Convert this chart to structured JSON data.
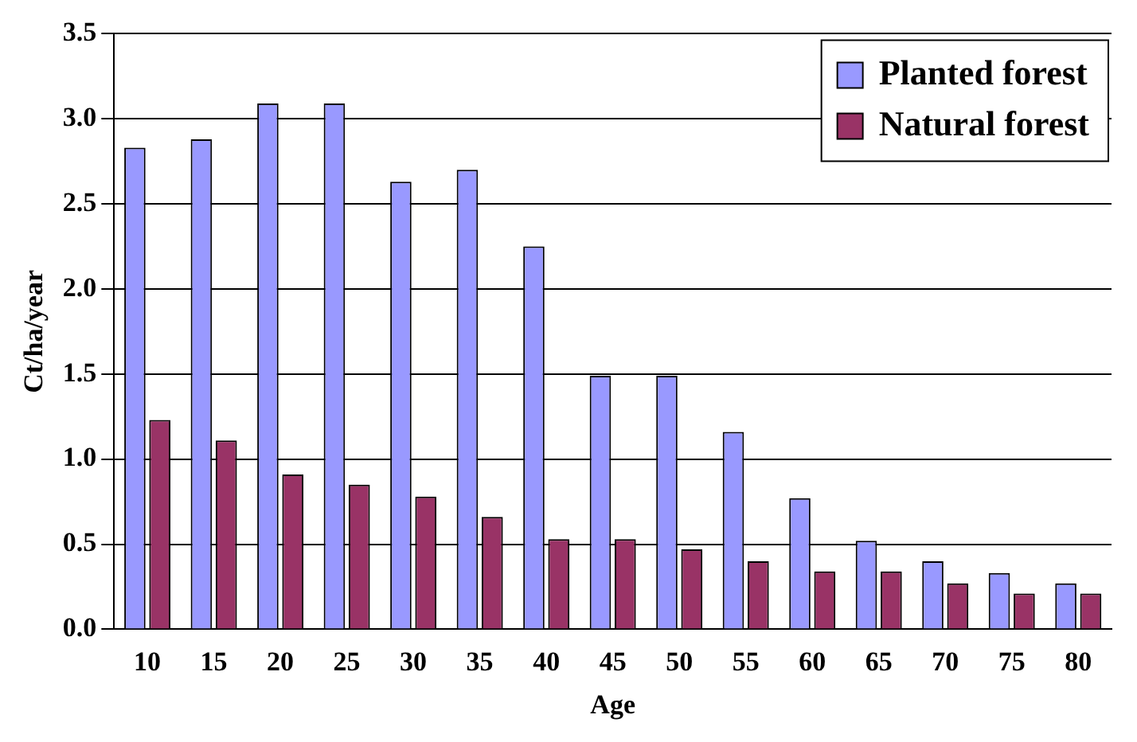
{
  "chart_data": {
    "type": "bar",
    "xlabel": "Age",
    "ylabel": "Ct/ha/year",
    "categories": [
      "10",
      "15",
      "20",
      "25",
      "30",
      "35",
      "40",
      "45",
      "50",
      "55",
      "60",
      "65",
      "70",
      "75",
      "80"
    ],
    "series": [
      {
        "name": "Planted forest",
        "color": "#9999ff",
        "values": [
          2.83,
          2.88,
          3.09,
          3.09,
          2.63,
          2.7,
          2.25,
          1.49,
          1.49,
          1.16,
          0.77,
          0.52,
          0.4,
          0.33,
          0.27
        ]
      },
      {
        "name": "Natural forest",
        "color": "#993366",
        "values": [
          1.23,
          1.11,
          0.91,
          0.85,
          0.78,
          0.66,
          0.53,
          0.53,
          0.47,
          0.4,
          0.34,
          0.34,
          0.27,
          0.21,
          0.21
        ]
      }
    ],
    "ylim": [
      0,
      3.5
    ],
    "yticks": [
      {
        "value": 0,
        "label": "0.0"
      },
      {
        "value": 0.5,
        "label": "0.5"
      },
      {
        "value": 1,
        "label": "1.0"
      },
      {
        "value": 1.5,
        "label": "1.5"
      },
      {
        "value": 2,
        "label": "2.0"
      },
      {
        "value": 2.5,
        "label": "2.5"
      },
      {
        "value": 3,
        "label": "3.0"
      },
      {
        "value": 3.5,
        "label": "3.5"
      }
    ],
    "grid": "y",
    "legend": "top right"
  }
}
